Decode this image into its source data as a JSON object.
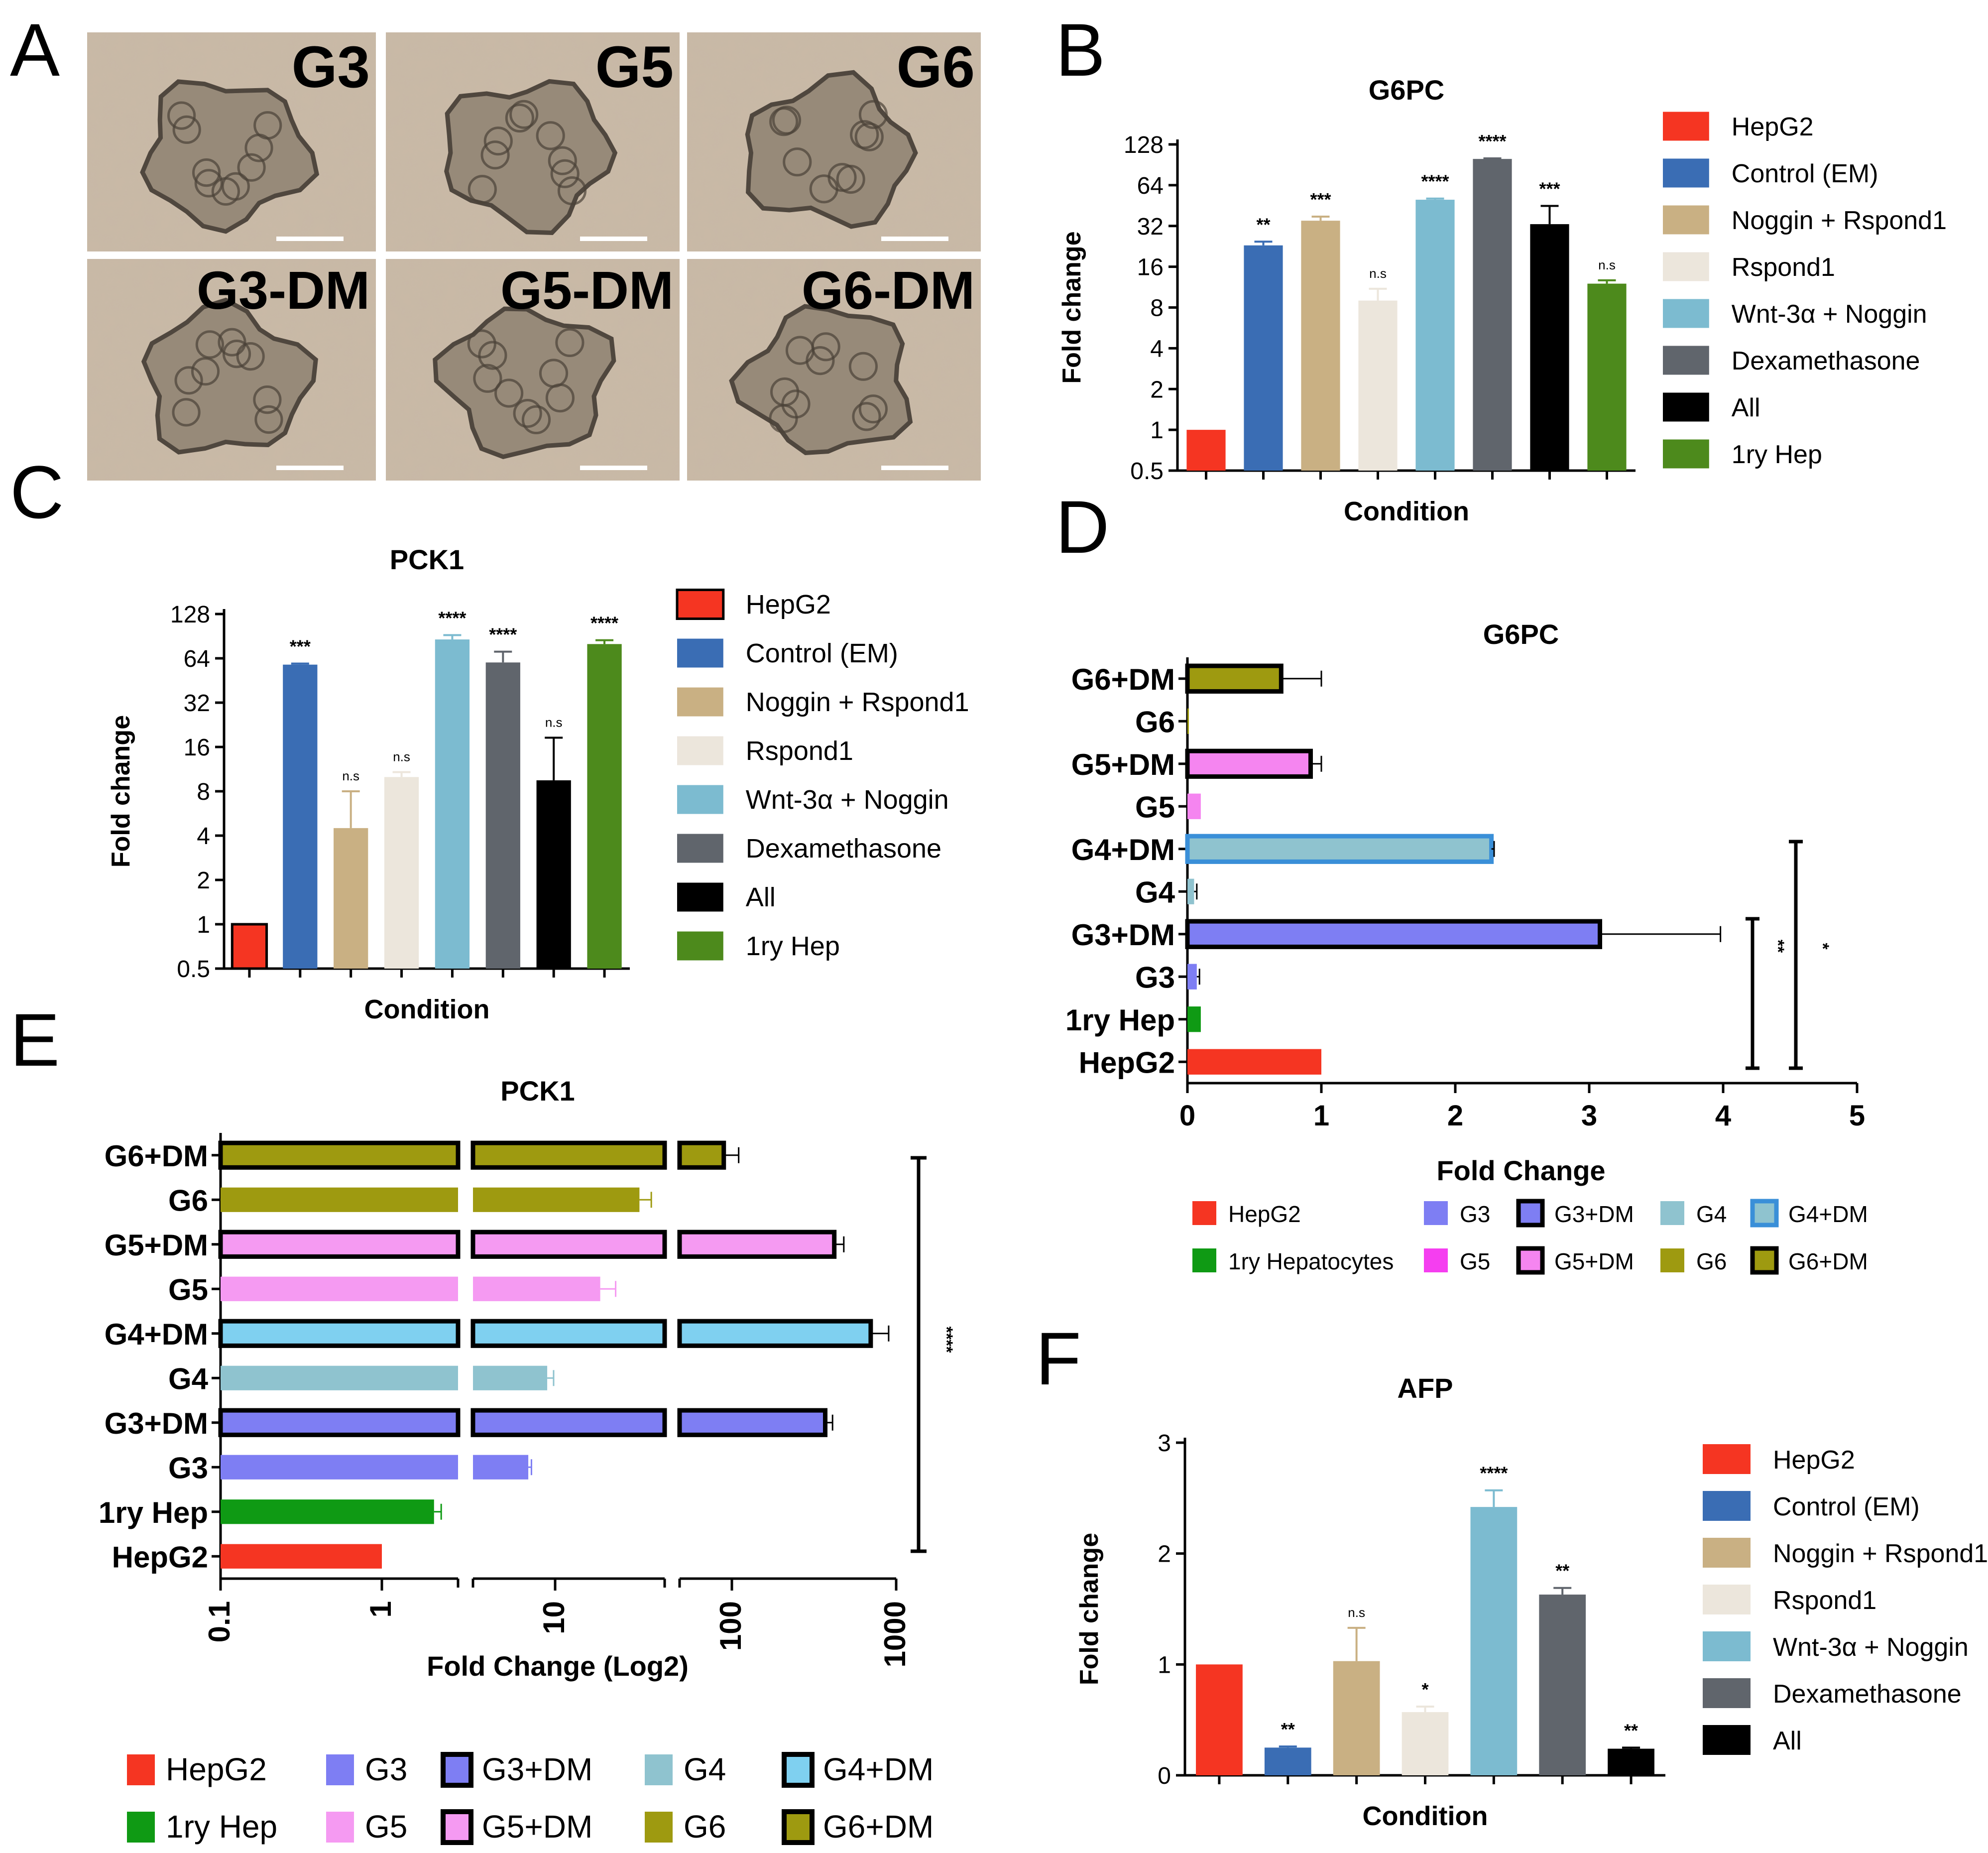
{
  "panel_letters": [
    "A",
    "B",
    "C",
    "D",
    "E",
    "F"
  ],
  "panel_a": {
    "images": [
      {
        "label": "G3"
      },
      {
        "label": "G5"
      },
      {
        "label": "G6"
      },
      {
        "label": "G3-DM"
      },
      {
        "label": "G5-DM"
      },
      {
        "label": "G6-DM"
      }
    ]
  },
  "colors": {
    "HepG2": "#f53522",
    "Control (EM)": "#3a6db4",
    "Noggin + Rspond1": "#c9b083",
    "Rspond1": "#ece6dc",
    "Wnt-3α + Noggin": "#7cbbd0",
    "Dexamethasone": "#60656c",
    "All": "#000000",
    "1ry Hep": "#4d8a1c",
    "G3": "#7e7ef3",
    "G4": "#8fc3cf",
    "G5": "#f585f0",
    "G6": "#9e9a10",
    "1ry Green": "#0f9a14",
    "G5 light": "#f59af2"
  },
  "chart_data": [
    {
      "panel": "B",
      "type": "bar",
      "title": "G6PC",
      "xlabel": "Condition",
      "ylabel": "Fold change",
      "yscale": "log2",
      "ylim": [
        0.5,
        128
      ],
      "yticks": [
        "0.5",
        "1",
        "2",
        "4",
        "8",
        "16",
        "32",
        "64",
        "128"
      ],
      "categories": [
        "HepG2",
        "Control (EM)",
        "Noggin + Rspond1",
        "Rspond1",
        "Wnt-3α + Noggin",
        "Dexamethasone",
        "All",
        "1ry Hep"
      ],
      "values": [
        1,
        23,
        35,
        9,
        50,
        100,
        33,
        12
      ],
      "errors": [
        0,
        1.5,
        2.5,
        2,
        1,
        1,
        12,
        0.7
      ],
      "significance": [
        "",
        "**",
        "***",
        "n.s",
        "****",
        "****",
        "***",
        "n.s"
      ],
      "legend": [
        "HepG2",
        "Control (EM)",
        "Noggin + Rspond1",
        "Rspond1",
        "Wnt-3α + Noggin",
        "Dexamethasone",
        "All",
        "1ry Hep"
      ],
      "legend_position": "right"
    },
    {
      "panel": "C",
      "type": "bar",
      "title": "PCK1",
      "xlabel": "Condition",
      "ylabel": "Fold change",
      "yscale": "log2",
      "ylim": [
        0.5,
        128
      ],
      "yticks": [
        "0.5",
        "1",
        "2",
        "4",
        "8",
        "16",
        "32",
        "64",
        "128"
      ],
      "categories": [
        "HepG2",
        "Control (EM)",
        "Noggin + Rspond1",
        "Rspond1",
        "Wnt-3α + Noggin",
        "Dexamethasone",
        "All",
        "1ry Hep"
      ],
      "values": [
        1,
        58,
        4.5,
        10,
        86,
        60,
        9.5,
        80
      ],
      "errors": [
        0,
        1,
        3.5,
        0.8,
        6,
        11,
        9,
        5
      ],
      "significance": [
        "",
        "***",
        "n.s",
        "n.s",
        "****",
        "****",
        "n.s",
        "****"
      ],
      "legend": [
        "HepG2",
        "Control (EM)",
        "Noggin + Rspond1",
        "Rspond1",
        "Wnt-3α + Noggin",
        "Dexamethasone",
        "All",
        "1ry Hep"
      ],
      "legend_position": "right"
    },
    {
      "panel": "D",
      "type": "bar",
      "orientation": "horizontal",
      "title": "G6PC",
      "xlabel": "Fold Change",
      "xlim": [
        0,
        5
      ],
      "xticks": [
        "0",
        "1",
        "2",
        "3",
        "4",
        "5"
      ],
      "categories": [
        "G6+DM",
        "G6",
        "G5+DM",
        "G5",
        "G4+DM",
        "G4",
        "G3+DM",
        "G3",
        "1ry Hep",
        "HepG2"
      ],
      "values": [
        0.7,
        0.01,
        0.92,
        0.1,
        2.27,
        0.05,
        3.08,
        0.07,
        0.1,
        1
      ],
      "errors": [
        0.3,
        0,
        0.08,
        0,
        0.02,
        0.02,
        0.9,
        0.02,
        0,
        0
      ],
      "significance_brackets": [
        "**",
        "*"
      ],
      "legend": [
        "HepG2",
        "1ry Hepatocytes",
        "G3",
        "G5",
        "G3+DM",
        "G5+DM",
        "G4",
        "G6",
        "G4+DM",
        "G6+DM"
      ],
      "legend_position": "bottom"
    },
    {
      "panel": "E",
      "type": "bar",
      "orientation": "horizontal",
      "title": "PCK1",
      "xlabel": "Fold Change (Log2)",
      "xscale": "log10-broken",
      "xticks": [
        "0.1",
        "1",
        "10",
        "100",
        "1000"
      ],
      "categories": [
        "G6+DM",
        "G6",
        "G5+DM",
        "G5",
        "G4+DM",
        "G4",
        "G3+DM",
        "G3",
        "1ry Hep",
        "HepG2"
      ],
      "values": [
        90,
        30,
        420,
        18,
        700,
        9,
        370,
        7,
        2,
        1
      ],
      "errors": [
        20,
        5,
        60,
        4,
        200,
        0.8,
        40,
        0.3,
        0.2,
        0
      ],
      "significance": "****",
      "legend": [
        "HepG2",
        "1ry Hep",
        "G3",
        "G5",
        "G3+DM",
        "G5+DM",
        "G4",
        "G6",
        "G4+DM",
        "G6+DM"
      ],
      "legend_position": "bottom"
    },
    {
      "panel": "F",
      "type": "bar",
      "title": "AFP",
      "xlabel": "Condition",
      "ylabel": "Fold change",
      "ylim": [
        0,
        3
      ],
      "yticks": [
        "0",
        "1",
        "2",
        "3"
      ],
      "categories": [
        "HepG2",
        "Control (EM)",
        "Noggin + Rspond1",
        "Rspond1",
        "Wnt-3α + Noggin",
        "Dexamethasone",
        "All"
      ],
      "values": [
        1,
        0.25,
        1.03,
        0.57,
        2.42,
        1.63,
        0.24
      ],
      "errors": [
        0,
        0.01,
        0.3,
        0.05,
        0.15,
        0.06,
        0.01
      ],
      "significance": [
        "",
        "**",
        "n.s",
        "*",
        "****",
        "**",
        "**"
      ],
      "legend": [
        "HepG2",
        "Control (EM)",
        "Noggin + Rspond1",
        "Rspond1",
        "Wnt-3α + Noggin",
        "Dexamethasone",
        "All"
      ],
      "legend_position": "right"
    }
  ]
}
